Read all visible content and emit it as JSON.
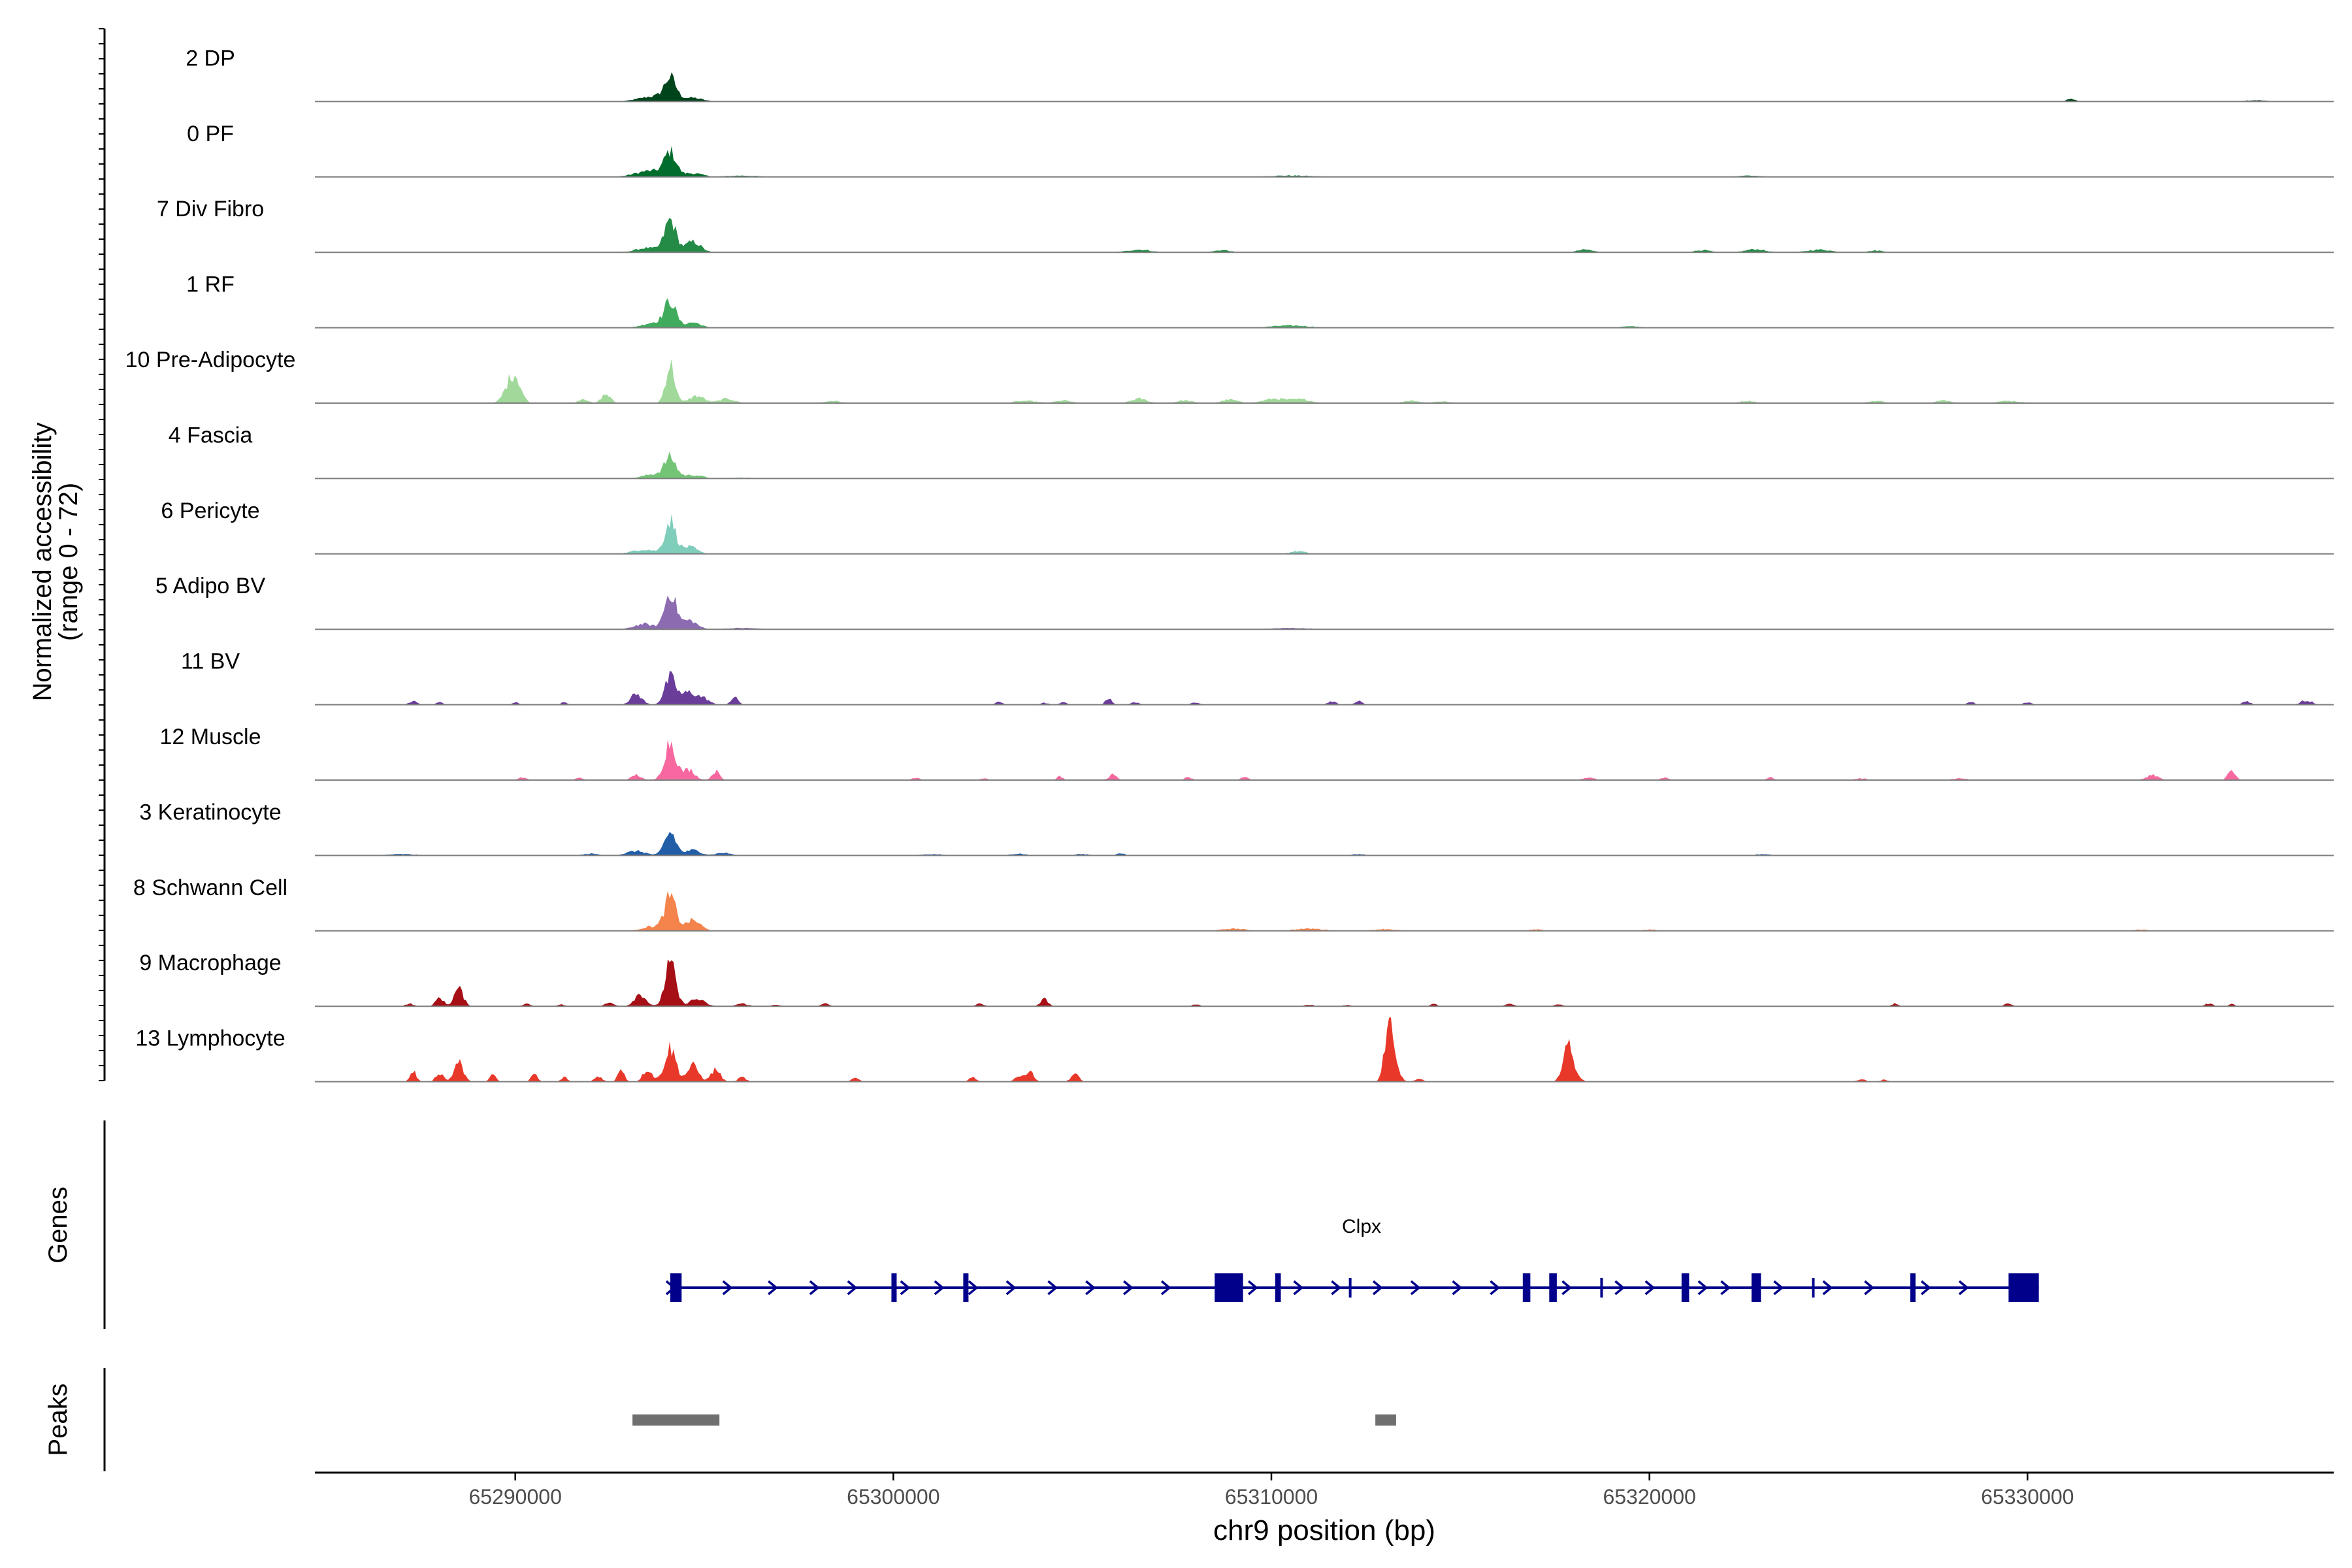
{
  "chart_data": {
    "type": "coverage",
    "ylabel_line1": "Normalized accessibility",
    "ylabel_line2": "(range 0 - 72)",
    "ylim": [
      0,
      72
    ],
    "xlabel": "chr9 position (bp)",
    "xlim": [
      65284700,
      65338100
    ],
    "xticks": [
      {
        "value": 65290000,
        "label": "65290000"
      },
      {
        "value": 65300000,
        "label": "65300000"
      },
      {
        "value": 65310000,
        "label": "65310000"
      },
      {
        "value": 65320000,
        "label": "65320000"
      },
      {
        "value": 65330000,
        "label": "65330000"
      }
    ],
    "tracks": [
      {
        "name": "2 DP",
        "color": "#00441b",
        "peaks": [
          [
            65294100,
            24,
            150
          ],
          [
            65293700,
            6,
            400
          ],
          [
            65294700,
            4,
            250
          ],
          [
            65331150,
            3,
            120
          ],
          [
            65336000,
            1.5,
            300
          ]
        ]
      },
      {
        "name": "0 PF",
        "color": "#006d2c",
        "peaks": [
          [
            65294100,
            26,
            150
          ],
          [
            65293600,
            7,
            400
          ],
          [
            65294700,
            4,
            250
          ],
          [
            65296000,
            1.5,
            400
          ],
          [
            65310500,
            1.5,
            600
          ],
          [
            65322600,
            1.5,
            300
          ]
        ]
      },
      {
        "name": "7 Div Fibro",
        "color": "#238b45",
        "peaks": [
          [
            65294100,
            36,
            150
          ],
          [
            65294700,
            12,
            200
          ],
          [
            65293500,
            5,
            300
          ],
          [
            65306500,
            3,
            300
          ],
          [
            65308700,
            2.5,
            200
          ],
          [
            65318300,
            3,
            200
          ],
          [
            65321400,
            2.5,
            200
          ],
          [
            65322800,
            3.5,
            250
          ],
          [
            65324500,
            3,
            300
          ],
          [
            65326000,
            2,
            200
          ]
        ]
      },
      {
        "name": "1 RF",
        "color": "#41ab5d",
        "peaks": [
          [
            65294100,
            28,
            150
          ],
          [
            65293700,
            6,
            300
          ],
          [
            65294700,
            6,
            200
          ],
          [
            65310500,
            2.5,
            500
          ],
          [
            65319500,
            1.5,
            300
          ]
        ]
      },
      {
        "name": "10 Pre-Adipocyte",
        "color": "#a1d99b",
        "peaks": [
          [
            65294100,
            44,
            120
          ],
          [
            65290000,
            28,
            150
          ],
          [
            65289800,
            12,
            150
          ],
          [
            65292400,
            10,
            120
          ],
          [
            65291800,
            5,
            120
          ],
          [
            65294800,
            8,
            200
          ],
          [
            65295600,
            5,
            200
          ],
          [
            65298400,
            2.5,
            200
          ],
          [
            65303500,
            2.5,
            300
          ],
          [
            65304500,
            3,
            200
          ],
          [
            65306500,
            5,
            200
          ],
          [
            65307700,
            3,
            200
          ],
          [
            65308900,
            4,
            200
          ],
          [
            65310100,
            5,
            300
          ],
          [
            65310800,
            4,
            250
          ],
          [
            65313700,
            3,
            200
          ],
          [
            65314500,
            2,
            200
          ],
          [
            65322600,
            2.5,
            200
          ],
          [
            65326000,
            2.5,
            200
          ],
          [
            65327800,
            3,
            200
          ],
          [
            65329500,
            2.5,
            300
          ]
        ]
      },
      {
        "name": "4 Fascia",
        "color": "#74c476",
        "peaks": [
          [
            65294100,
            22,
            150
          ],
          [
            65293700,
            5,
            300
          ],
          [
            65294700,
            4,
            250
          ],
          [
            65296000,
            1,
            300
          ]
        ]
      },
      {
        "name": "6 Pericyte",
        "color": "#7fcdbb",
        "peaks": [
          [
            65294100,
            38,
            140
          ],
          [
            65294600,
            8,
            200
          ],
          [
            65293400,
            5,
            300
          ],
          [
            65310700,
            3,
            200
          ]
        ]
      },
      {
        "name": "5 Adipo BV",
        "color": "#8c6bb1",
        "peaks": [
          [
            65294100,
            42,
            150
          ],
          [
            65294600,
            10,
            200
          ],
          [
            65293400,
            6,
            250
          ],
          [
            65296000,
            1.5,
            400
          ],
          [
            65310500,
            1.5,
            500
          ]
        ]
      },
      {
        "name": "11 BV",
        "color": "#6a3d9a",
        "peaks": [
          [
            65294100,
            30,
            150
          ],
          [
            65294600,
            14,
            200
          ],
          [
            65293200,
            12,
            150
          ],
          [
            65295800,
            8,
            100
          ],
          [
            65295000,
            6,
            150
          ],
          [
            65287300,
            4,
            100
          ],
          [
            65288000,
            3,
            80
          ],
          [
            65291300,
            3,
            80
          ],
          [
            65290000,
            3,
            80
          ],
          [
            65304500,
            2.5,
            100
          ],
          [
            65304000,
            2,
            100
          ],
          [
            65302800,
            3,
            100
          ],
          [
            65305700,
            8,
            80
          ],
          [
            65306400,
            3,
            100
          ],
          [
            65308000,
            3,
            100
          ],
          [
            65311600,
            4,
            100
          ],
          [
            65312300,
            4,
            100
          ],
          [
            65328500,
            3,
            100
          ],
          [
            65330000,
            3,
            100
          ],
          [
            65335800,
            4,
            100
          ],
          [
            65337300,
            4,
            100
          ],
          [
            65337500,
            3,
            80
          ]
        ]
      },
      {
        "name": "12 Muscle",
        "color": "#f768a1",
        "peaks": [
          [
            65294100,
            44,
            150
          ],
          [
            65294600,
            12,
            150
          ],
          [
            65295300,
            10,
            100
          ],
          [
            65293200,
            6,
            120
          ],
          [
            65290200,
            3,
            100
          ],
          [
            65291700,
            2.5,
            100
          ],
          [
            65300600,
            3,
            100
          ],
          [
            65302400,
            2,
            100
          ],
          [
            65304400,
            4,
            80
          ],
          [
            65305800,
            6,
            100
          ],
          [
            65307800,
            3,
            100
          ],
          [
            65309300,
            3,
            100
          ],
          [
            65318400,
            3,
            150
          ],
          [
            65320400,
            3,
            100
          ],
          [
            65323200,
            3,
            100
          ],
          [
            65325600,
            2,
            150
          ],
          [
            65328200,
            2,
            200
          ],
          [
            65333300,
            6,
            150
          ],
          [
            65335400,
            10,
            100
          ]
        ]
      },
      {
        "name": "3 Keratinocyte",
        "color": "#225ea8",
        "peaks": [
          [
            65294100,
            26,
            150
          ],
          [
            65293200,
            5,
            250
          ],
          [
            65294700,
            6,
            200
          ],
          [
            65295500,
            3,
            200
          ],
          [
            65292000,
            2,
            200
          ],
          [
            65287000,
            1.5,
            400
          ],
          [
            65301000,
            1.5,
            300
          ],
          [
            65303300,
            2,
            200
          ],
          [
            65306000,
            3,
            100
          ],
          [
            65305000,
            1.5,
            200
          ],
          [
            65312300,
            1.5,
            200
          ],
          [
            65323000,
            1.5,
            200
          ]
        ]
      },
      {
        "name": "8 Schwann Cell",
        "color": "#f4844c",
        "peaks": [
          [
            65294100,
            38,
            150
          ],
          [
            65294700,
            12,
            200
          ],
          [
            65293600,
            5,
            250
          ],
          [
            65309000,
            2.5,
            300
          ],
          [
            65311000,
            2.5,
            400
          ],
          [
            65313000,
            2,
            300
          ],
          [
            65317000,
            1.5,
            200
          ],
          [
            65320000,
            1.5,
            200
          ],
          [
            65333000,
            1.5,
            200
          ]
        ]
      },
      {
        "name": "9 Macrophage",
        "color": "#a50f15",
        "peaks": [
          [
            65294100,
            48,
            140
          ],
          [
            65293300,
            14,
            150
          ],
          [
            65294800,
            8,
            200
          ],
          [
            65288500,
            20,
            120
          ],
          [
            65288000,
            10,
            100
          ],
          [
            65287200,
            3,
            100
          ],
          [
            65290300,
            3,
            100
          ],
          [
            65291200,
            2,
            100
          ],
          [
            65292500,
            4,
            120
          ],
          [
            65296000,
            3,
            150
          ],
          [
            65296900,
            2,
            100
          ],
          [
            65298200,
            3,
            100
          ],
          [
            65302300,
            3,
            100
          ],
          [
            65304000,
            8,
            100
          ],
          [
            65308000,
            2,
            100
          ],
          [
            65311000,
            2,
            100
          ],
          [
            65312000,
            1.5,
            100
          ],
          [
            65314300,
            3,
            80
          ],
          [
            65316300,
            3,
            100
          ],
          [
            65317600,
            2.5,
            100
          ],
          [
            65326500,
            3,
            80
          ],
          [
            65329500,
            3,
            100
          ],
          [
            65334800,
            3,
            100
          ],
          [
            65335400,
            2.5,
            80
          ]
        ]
      },
      {
        "name": "13 Lymphocyte",
        "color": "#e8382a",
        "peaks": [
          [
            65294100,
            38,
            150
          ],
          [
            65294700,
            18,
            150
          ],
          [
            65295300,
            14,
            120
          ],
          [
            65293500,
            14,
            120
          ],
          [
            65292800,
            16,
            80
          ],
          [
            65313100,
            60,
            110
          ],
          [
            65313300,
            12,
            120
          ],
          [
            65317800,
            38,
            110
          ],
          [
            65318000,
            15,
            120
          ],
          [
            65288500,
            22,
            120
          ],
          [
            65288000,
            10,
            100
          ],
          [
            65287300,
            12,
            80
          ],
          [
            65289400,
            8,
            80
          ],
          [
            65290500,
            9,
            80
          ],
          [
            65291300,
            5,
            80
          ],
          [
            65292200,
            6,
            100
          ],
          [
            65296000,
            5,
            100
          ],
          [
            65299000,
            4,
            100
          ],
          [
            65302100,
            5,
            100
          ],
          [
            65303600,
            14,
            100
          ],
          [
            65303300,
            6,
            100
          ],
          [
            65304800,
            9,
            100
          ],
          [
            65313900,
            3,
            100
          ],
          [
            65325600,
            3,
            100
          ],
          [
            65326200,
            2,
            100
          ]
        ]
      }
    ],
    "genes_label": "Genes",
    "gene": {
      "name": "Clpx",
      "start": 65294100,
      "end": 65330300,
      "strand": "+",
      "exons": [
        [
          65294100,
          65294400,
          "big"
        ],
        [
          65299950,
          65300050,
          "thin"
        ],
        [
          65301850,
          65301950,
          "thin"
        ],
        [
          65308500,
          65309250,
          "big"
        ],
        [
          65310100,
          65310250,
          "thin"
        ],
        [
          65312050,
          65312150,
          "small"
        ],
        [
          65316650,
          65316850,
          "thin"
        ],
        [
          65317350,
          65317550,
          "thin"
        ],
        [
          65318700,
          65318800,
          "small"
        ],
        [
          65320850,
          65321050,
          "thin"
        ],
        [
          65322700,
          65322950,
          "thin"
        ],
        [
          65324300,
          65324400,
          "small"
        ],
        [
          65326900,
          65327000,
          "thin"
        ],
        [
          65329500,
          65330300,
          "big"
        ]
      ],
      "arrows": [
        65294100,
        65295600,
        65296800,
        65297900,
        65298900,
        65300300,
        65301200,
        65302100,
        65303100,
        65304200,
        65305200,
        65306200,
        65307200,
        65309500,
        65310700,
        65311700,
        65312800,
        65313800,
        65314900,
        65315900,
        65317800,
        65319200,
        65320000,
        65321400,
        65322000,
        65323400,
        65324700,
        65325800,
        65327300,
        65328300
      ]
    },
    "peaks_label": "Peaks",
    "peak_regions": [
      [
        65293100,
        65295400
      ],
      [
        65312750,
        65313300
      ]
    ]
  }
}
